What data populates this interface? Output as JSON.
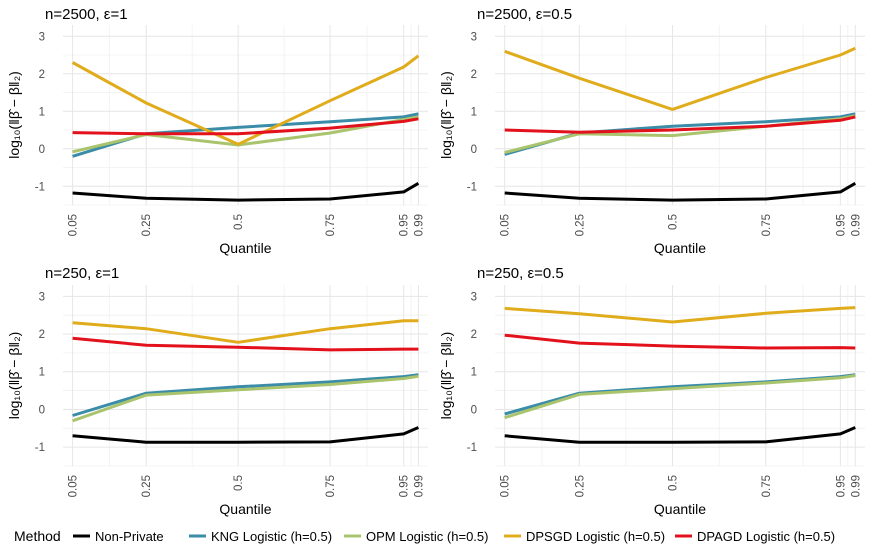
{
  "chart_data": {
    "type": "line",
    "y_axis_label": "log₁₀(‖β̂ − β‖₂)",
    "x_axis_label": "Quantile",
    "x": [
      0.05,
      0.25,
      0.5,
      0.75,
      0.95,
      0.99
    ],
    "x_tick_labels": [
      "0.05",
      "0.25",
      "0.5",
      "0.75",
      "0.95",
      "0.99"
    ],
    "y_ticks": [
      -1,
      0,
      1,
      2,
      3
    ],
    "y_tick_labels": [
      "-1",
      "0",
      "1",
      "2",
      "3"
    ],
    "ylim": [
      -1.5,
      3.3
    ],
    "grid": true,
    "legend": {
      "title": "Method",
      "position": "bottom",
      "entries": [
        {
          "name": "Non-Private",
          "color": "#000000"
        },
        {
          "name": "KNG Logistic (h=0.5)",
          "color": "#3a8ca8"
        },
        {
          "name": "OPM Logistic (h=0.5)",
          "color": "#a9c46c"
        },
        {
          "name": "DPSGD Logistic (h=0.5)",
          "color": "#e0ac1c"
        },
        {
          "name": "DPAGD Logistic (h=0.5)",
          "color": "#e3111b"
        }
      ]
    },
    "panels": [
      {
        "title": "n=2500, ε=1",
        "series": [
          {
            "name": "Non-Private",
            "values": [
              -1.18,
              -1.32,
              -1.37,
              -1.34,
              -1.15,
              -0.92
            ]
          },
          {
            "name": "KNG Logistic (h=0.5)",
            "values": [
              -0.2,
              0.4,
              0.57,
              0.72,
              0.85,
              0.93
            ]
          },
          {
            "name": "OPM Logistic (h=0.5)",
            "values": [
              -0.08,
              0.38,
              0.1,
              0.42,
              0.78,
              0.85
            ]
          },
          {
            "name": "DPSGD Logistic (h=0.5)",
            "values": [
              2.3,
              1.22,
              0.12,
              1.28,
              2.18,
              2.48
            ]
          },
          {
            "name": "DPAGD Logistic (h=0.5)",
            "values": [
              0.43,
              0.4,
              0.4,
              0.55,
              0.73,
              0.8
            ]
          }
        ]
      },
      {
        "title": "n=2500, ε=0.5",
        "series": [
          {
            "name": "Non-Private",
            "values": [
              -1.18,
              -1.32,
              -1.37,
              -1.34,
              -1.15,
              -0.92
            ]
          },
          {
            "name": "KNG Logistic (h=0.5)",
            "values": [
              -0.15,
              0.42,
              0.6,
              0.72,
              0.85,
              0.93
            ]
          },
          {
            "name": "OPM Logistic (h=0.5)",
            "values": [
              -0.1,
              0.4,
              0.35,
              0.6,
              0.8,
              0.88
            ]
          },
          {
            "name": "DPSGD Logistic (h=0.5)",
            "values": [
              2.6,
              1.88,
              1.05,
              1.9,
              2.5,
              2.68
            ]
          },
          {
            "name": "DPAGD Logistic (h=0.5)",
            "values": [
              0.5,
              0.44,
              0.5,
              0.6,
              0.76,
              0.85
            ]
          }
        ]
      },
      {
        "title": "n=250, ε=1",
        "series": [
          {
            "name": "Non-Private",
            "values": [
              -0.7,
              -0.87,
              -0.87,
              -0.86,
              -0.65,
              -0.48
            ]
          },
          {
            "name": "KNG Logistic (h=0.5)",
            "values": [
              -0.16,
              0.43,
              0.6,
              0.73,
              0.87,
              0.92
            ]
          },
          {
            "name": "OPM Logistic (h=0.5)",
            "values": [
              -0.3,
              0.38,
              0.52,
              0.66,
              0.82,
              0.88
            ]
          },
          {
            "name": "DPSGD Logistic (h=0.5)",
            "values": [
              2.3,
              2.14,
              1.78,
              2.14,
              2.35,
              2.35
            ]
          },
          {
            "name": "DPAGD Logistic (h=0.5)",
            "values": [
              1.89,
              1.7,
              1.65,
              1.58,
              1.6,
              1.6
            ]
          }
        ]
      },
      {
        "title": "n=250, ε=0.5",
        "series": [
          {
            "name": "Non-Private",
            "values": [
              -0.7,
              -0.87,
              -0.87,
              -0.86,
              -0.65,
              -0.48
            ]
          },
          {
            "name": "KNG Logistic (h=0.5)",
            "values": [
              -0.12,
              0.43,
              0.6,
              0.73,
              0.87,
              0.92
            ]
          },
          {
            "name": "OPM Logistic (h=0.5)",
            "values": [
              -0.22,
              0.4,
              0.55,
              0.7,
              0.84,
              0.9
            ]
          },
          {
            "name": "DPSGD Logistic (h=0.5)",
            "values": [
              2.68,
              2.54,
              2.32,
              2.55,
              2.68,
              2.7
            ]
          },
          {
            "name": "DPAGD Logistic (h=0.5)",
            "values": [
              1.97,
              1.76,
              1.68,
              1.63,
              1.64,
              1.63
            ]
          }
        ]
      }
    ]
  }
}
